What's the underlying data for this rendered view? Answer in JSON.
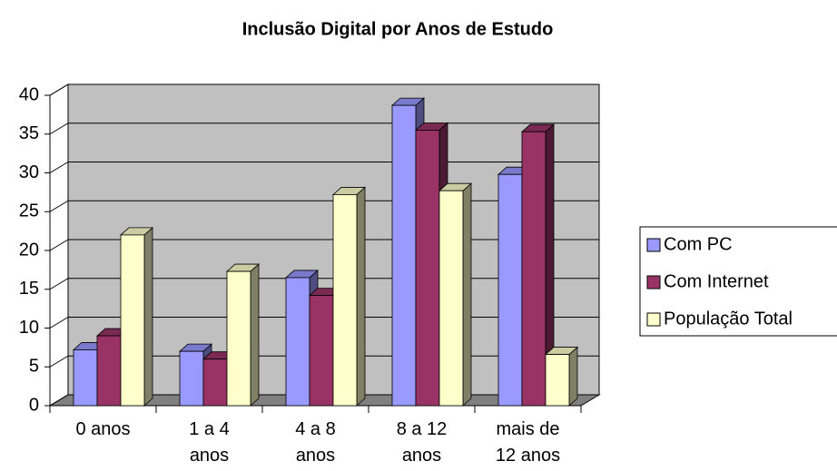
{
  "chart_data": {
    "type": "bar3d",
    "title": "Inclusão Digital por Anos de Estudo",
    "categories": [
      "0 anos",
      "1 a 4 anos",
      "4 a 8 anos",
      "8 a 12 anos",
      "mais de 12 anos"
    ],
    "series": [
      {
        "name": "Com PC",
        "color": "#9999ff",
        "values": [
          7.2,
          7,
          16.5,
          38.7,
          29.8
        ]
      },
      {
        "name": "Com Internet",
        "color": "#993366",
        "values": [
          9,
          6,
          14.2,
          35.5,
          35.3
        ]
      },
      {
        "name": "População Total",
        "color": "#ffffcc",
        "values": [
          22,
          17.3,
          27.2,
          27.7,
          6.6
        ]
      }
    ],
    "ylim": [
      0,
      40
    ],
    "yticks": [
      0,
      5,
      10,
      15,
      20,
      25,
      30,
      35,
      40
    ],
    "grid": true,
    "legend": "right"
  }
}
